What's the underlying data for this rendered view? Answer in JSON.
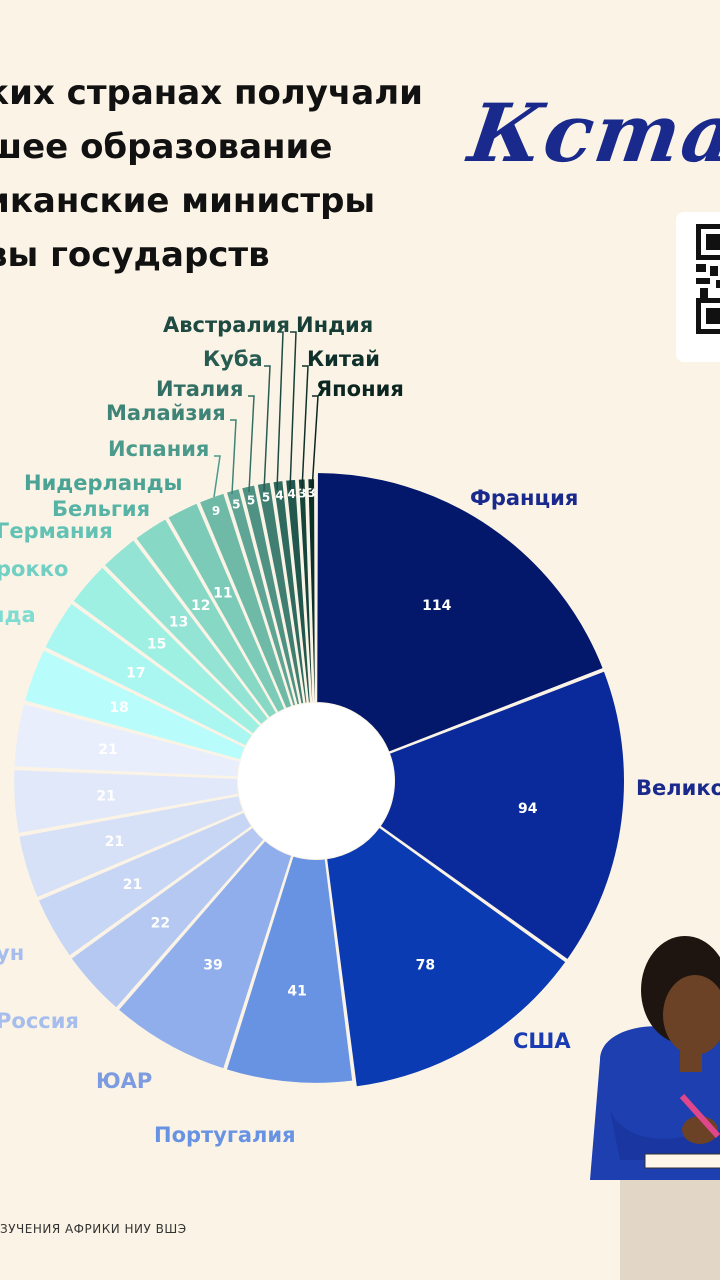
{
  "title": {
    "line1": "ких странах получали",
    "line2": "шее образование",
    "line3": "иканские министры",
    "line4": "вы государств"
  },
  "brand": {
    "text": "Кстати"
  },
  "footer": {
    "text": "ЗУЧЕНИЯ АФРИКИ НИУ ВШЭ"
  },
  "colors": {
    "background": "#fbf4e6",
    "accent": "#1a2a8c"
  },
  "chart_data": {
    "type": "pie",
    "style": "donut",
    "slices": [
      {
        "label": "Франция",
        "value": 114,
        "color": "#03176b"
      },
      {
        "label": "Велико",
        "value": 94,
        "color": "#0a2a9c"
      },
      {
        "label": "США",
        "value": 78,
        "color": "#0a3bb2"
      },
      {
        "label": "Португалия",
        "value": 41,
        "color": "#6893e3"
      },
      {
        "label": "ЮАР",
        "value": 39,
        "color": "#90aeeb"
      },
      {
        "label": "Россия",
        "value": 22,
        "color": "#b4c8f1"
      },
      {
        "label": "ун",
        "value": 21,
        "color": "#c8d6f5"
      },
      {
        "label": "",
        "value": 21,
        "color": "#d6e0f7"
      },
      {
        "label": "",
        "value": 21,
        "color": "#e0e8fa"
      },
      {
        "label": "",
        "value": 21,
        "color": "#e9eefc"
      },
      {
        "label": "",
        "value": 18,
        "color": "#b8fdfb"
      },
      {
        "label": "нда",
        "value": 17,
        "color": "#aaf6f0"
      },
      {
        "label": "рокко",
        "value": 15,
        "color": "#9ef0e3"
      },
      {
        "label": "Германия",
        "value": 13,
        "color": "#93e4d4"
      },
      {
        "label": "Бельгия",
        "value": 12,
        "color": "#88d8c6"
      },
      {
        "label": "Нидерланды",
        "value": 11,
        "color": "#7ccbb8"
      },
      {
        "label": "Испания",
        "value": 9,
        "color": "#6fb9a7"
      },
      {
        "label": "Малайзия",
        "value": 5,
        "color": "#5fa595"
      },
      {
        "label": "Италия",
        "value": 5,
        "color": "#4f9283"
      },
      {
        "label": "Куба",
        "value": 5,
        "color": "#3f7e71"
      },
      {
        "label": "Австралия",
        "value": 4,
        "color": "#2f6a5e"
      },
      {
        "label": "Индия",
        "value": 4,
        "color": "#21574c"
      },
      {
        "label": "Китай",
        "value": 3,
        "color": "#15443b"
      },
      {
        "label": "Япония",
        "value": 3,
        "color": "#0c312b"
      }
    ]
  }
}
